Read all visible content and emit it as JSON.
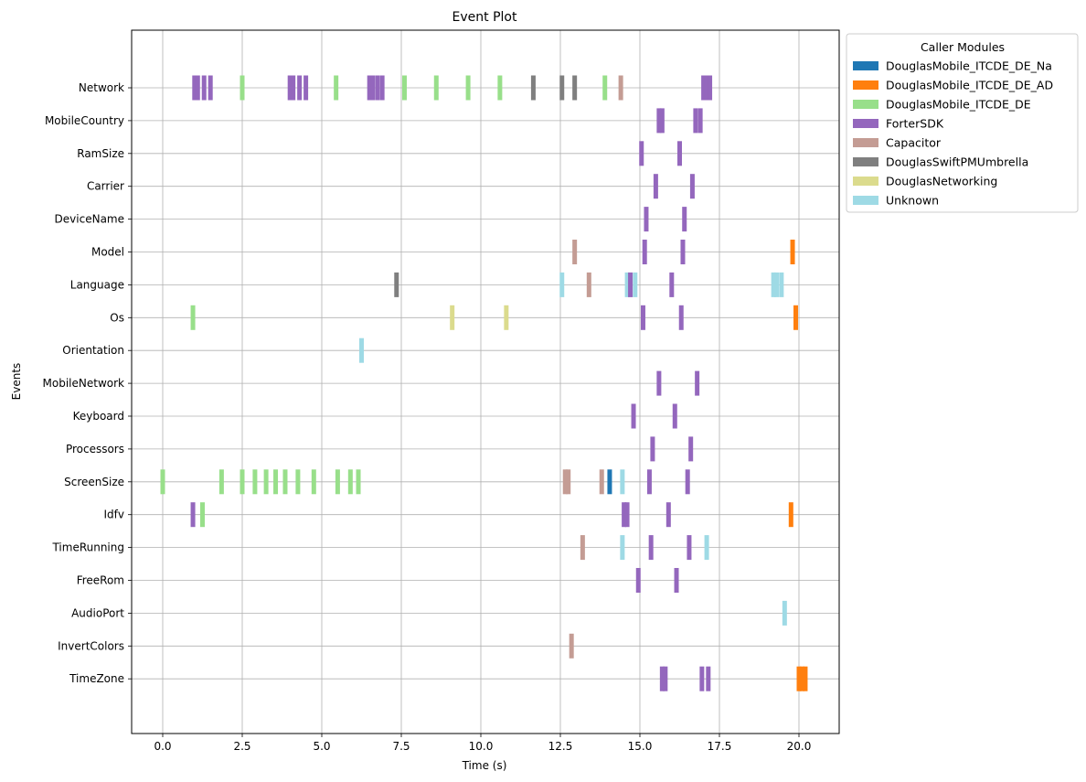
{
  "chart_data": {
    "type": "eventplot",
    "title": "Event Plot",
    "xlabel": "Time (s)",
    "ylabel": "Events",
    "xlim": [
      -1.0,
      21.3
    ],
    "x_ticks": [
      0.0,
      2.5,
      5.0,
      7.5,
      10.0,
      12.5,
      15.0,
      17.5,
      20.0
    ],
    "x_tick_labels": [
      "0.0",
      "2.5",
      "5.0",
      "7.5",
      "10.0",
      "12.5",
      "15.0",
      "17.5",
      "20.0"
    ],
    "grid": true,
    "legend": {
      "title": "Caller Modules",
      "placement": "upper-left outside right",
      "entries": [
        {
          "label": "DouglasMobile_ITCDE_DE_Na",
          "color": "#1f77b4"
        },
        {
          "label": "DouglasMobile_ITCDE_DE_AD",
          "color": "#ff7f0e"
        },
        {
          "label": "DouglasMobile_ITCDE_DE",
          "color": "#98df8a"
        },
        {
          "label": "ForterSDK",
          "color": "#9467bd"
        },
        {
          "label": "Capacitor",
          "color": "#c49c94"
        },
        {
          "label": "DouglasSwiftPMUmbrella",
          "color": "#7f7f7f"
        },
        {
          "label": "DouglasNetworking",
          "color": "#dbdb8d"
        },
        {
          "label": "Unknown",
          "color": "#9edae5"
        }
      ]
    },
    "rows": [
      {
        "label": "Network",
        "events": [
          {
            "x": 1.0,
            "m": 3
          },
          {
            "x": 1.1,
            "m": 3
          },
          {
            "x": 1.3,
            "m": 3
          },
          {
            "x": 1.5,
            "m": 3
          },
          {
            "x": 2.5,
            "m": 2
          },
          {
            "x": 4.0,
            "m": 3
          },
          {
            "x": 4.1,
            "m": 3
          },
          {
            "x": 4.3,
            "m": 3
          },
          {
            "x": 4.5,
            "m": 3
          },
          {
            "x": 5.45,
            "m": 2
          },
          {
            "x": 6.5,
            "m": 3
          },
          {
            "x": 6.6,
            "m": 3
          },
          {
            "x": 6.75,
            "m": 3
          },
          {
            "x": 6.9,
            "m": 3
          },
          {
            "x": 7.6,
            "m": 2
          },
          {
            "x": 8.6,
            "m": 2
          },
          {
            "x": 9.6,
            "m": 2
          },
          {
            "x": 10.6,
            "m": 2
          },
          {
            "x": 11.65,
            "m": 5
          },
          {
            "x": 12.55,
            "m": 5
          },
          {
            "x": 12.95,
            "m": 5
          },
          {
            "x": 13.9,
            "m": 2
          },
          {
            "x": 14.4,
            "m": 4
          },
          {
            "x": 17.0,
            "m": 3
          },
          {
            "x": 17.1,
            "m": 3
          },
          {
            "x": 17.2,
            "m": 3
          }
        ]
      },
      {
        "label": "MobileCountry",
        "events": [
          {
            "x": 15.6,
            "m": 3
          },
          {
            "x": 15.7,
            "m": 3
          },
          {
            "x": 16.75,
            "m": 3
          },
          {
            "x": 16.9,
            "m": 3
          }
        ]
      },
      {
        "label": "RamSize",
        "events": [
          {
            "x": 15.05,
            "m": 3
          },
          {
            "x": 16.25,
            "m": 3
          }
        ]
      },
      {
        "label": "Carrier",
        "events": [
          {
            "x": 15.5,
            "m": 3
          },
          {
            "x": 16.65,
            "m": 3
          }
        ]
      },
      {
        "label": "DeviceName",
        "events": [
          {
            "x": 15.2,
            "m": 3
          },
          {
            "x": 16.4,
            "m": 3
          }
        ]
      },
      {
        "label": "Model",
        "events": [
          {
            "x": 12.95,
            "m": 4
          },
          {
            "x": 15.15,
            "m": 3
          },
          {
            "x": 16.35,
            "m": 3
          },
          {
            "x": 19.8,
            "m": 1
          }
        ]
      },
      {
        "label": "Language",
        "events": [
          {
            "x": 7.35,
            "m": 5
          },
          {
            "x": 12.55,
            "m": 7
          },
          {
            "x": 13.4,
            "m": 4
          },
          {
            "x": 14.6,
            "m": 7
          },
          {
            "x": 14.7,
            "m": 3
          },
          {
            "x": 14.85,
            "m": 7
          },
          {
            "x": 16.0,
            "m": 3
          },
          {
            "x": 19.2,
            "m": 7
          },
          {
            "x": 19.3,
            "m": 7
          },
          {
            "x": 19.45,
            "m": 7
          }
        ]
      },
      {
        "label": "Os",
        "events": [
          {
            "x": 0.95,
            "m": 2
          },
          {
            "x": 9.1,
            "m": 6
          },
          {
            "x": 10.8,
            "m": 6
          },
          {
            "x": 15.1,
            "m": 3
          },
          {
            "x": 16.3,
            "m": 3
          },
          {
            "x": 19.9,
            "m": 1
          }
        ]
      },
      {
        "label": "Orientation",
        "events": [
          {
            "x": 6.25,
            "m": 7
          }
        ]
      },
      {
        "label": "MobileNetwork",
        "events": [
          {
            "x": 15.6,
            "m": 3
          },
          {
            "x": 16.8,
            "m": 3
          }
        ]
      },
      {
        "label": "Keyboard",
        "events": [
          {
            "x": 14.8,
            "m": 3
          },
          {
            "x": 16.1,
            "m": 3
          }
        ]
      },
      {
        "label": "Processors",
        "events": [
          {
            "x": 15.4,
            "m": 3
          },
          {
            "x": 16.6,
            "m": 3
          }
        ]
      },
      {
        "label": "ScreenSize",
        "events": [
          {
            "x": 0.0,
            "m": 2
          },
          {
            "x": 1.85,
            "m": 2
          },
          {
            "x": 2.5,
            "m": 2
          },
          {
            "x": 2.9,
            "m": 2
          },
          {
            "x": 3.25,
            "m": 2
          },
          {
            "x": 3.55,
            "m": 2
          },
          {
            "x": 3.85,
            "m": 2
          },
          {
            "x": 4.25,
            "m": 2
          },
          {
            "x": 4.75,
            "m": 2
          },
          {
            "x": 5.5,
            "m": 2
          },
          {
            "x": 5.9,
            "m": 2
          },
          {
            "x": 6.15,
            "m": 2
          },
          {
            "x": 12.65,
            "m": 4
          },
          {
            "x": 12.75,
            "m": 4
          },
          {
            "x": 13.8,
            "m": 4
          },
          {
            "x": 14.05,
            "m": 0
          },
          {
            "x": 14.45,
            "m": 7
          },
          {
            "x": 15.3,
            "m": 3
          },
          {
            "x": 16.5,
            "m": 3
          }
        ]
      },
      {
        "label": "Idfv",
        "events": [
          {
            "x": 0.95,
            "m": 3
          },
          {
            "x": 1.25,
            "m": 2
          },
          {
            "x": 14.5,
            "m": 3
          },
          {
            "x": 14.6,
            "m": 3
          },
          {
            "x": 15.9,
            "m": 3
          },
          {
            "x": 19.75,
            "m": 1
          }
        ]
      },
      {
        "label": "TimeRunning",
        "events": [
          {
            "x": 13.2,
            "m": 4
          },
          {
            "x": 14.45,
            "m": 7
          },
          {
            "x": 15.35,
            "m": 3
          },
          {
            "x": 16.55,
            "m": 3
          },
          {
            "x": 17.1,
            "m": 7
          }
        ]
      },
      {
        "label": "FreeRom",
        "events": [
          {
            "x": 14.95,
            "m": 3
          },
          {
            "x": 16.15,
            "m": 3
          }
        ]
      },
      {
        "label": "AudioPort",
        "events": [
          {
            "x": 19.55,
            "m": 7
          }
        ]
      },
      {
        "label": "InvertColors",
        "events": [
          {
            "x": 12.85,
            "m": 4
          }
        ]
      },
      {
        "label": "TimeZone",
        "events": [
          {
            "x": 15.7,
            "m": 3
          },
          {
            "x": 15.8,
            "m": 3
          },
          {
            "x": 16.95,
            "m": 3
          },
          {
            "x": 17.15,
            "m": 3
          },
          {
            "x": 20.0,
            "m": 1
          },
          {
            "x": 20.1,
            "m": 1
          },
          {
            "x": 20.2,
            "m": 1
          }
        ]
      }
    ]
  }
}
